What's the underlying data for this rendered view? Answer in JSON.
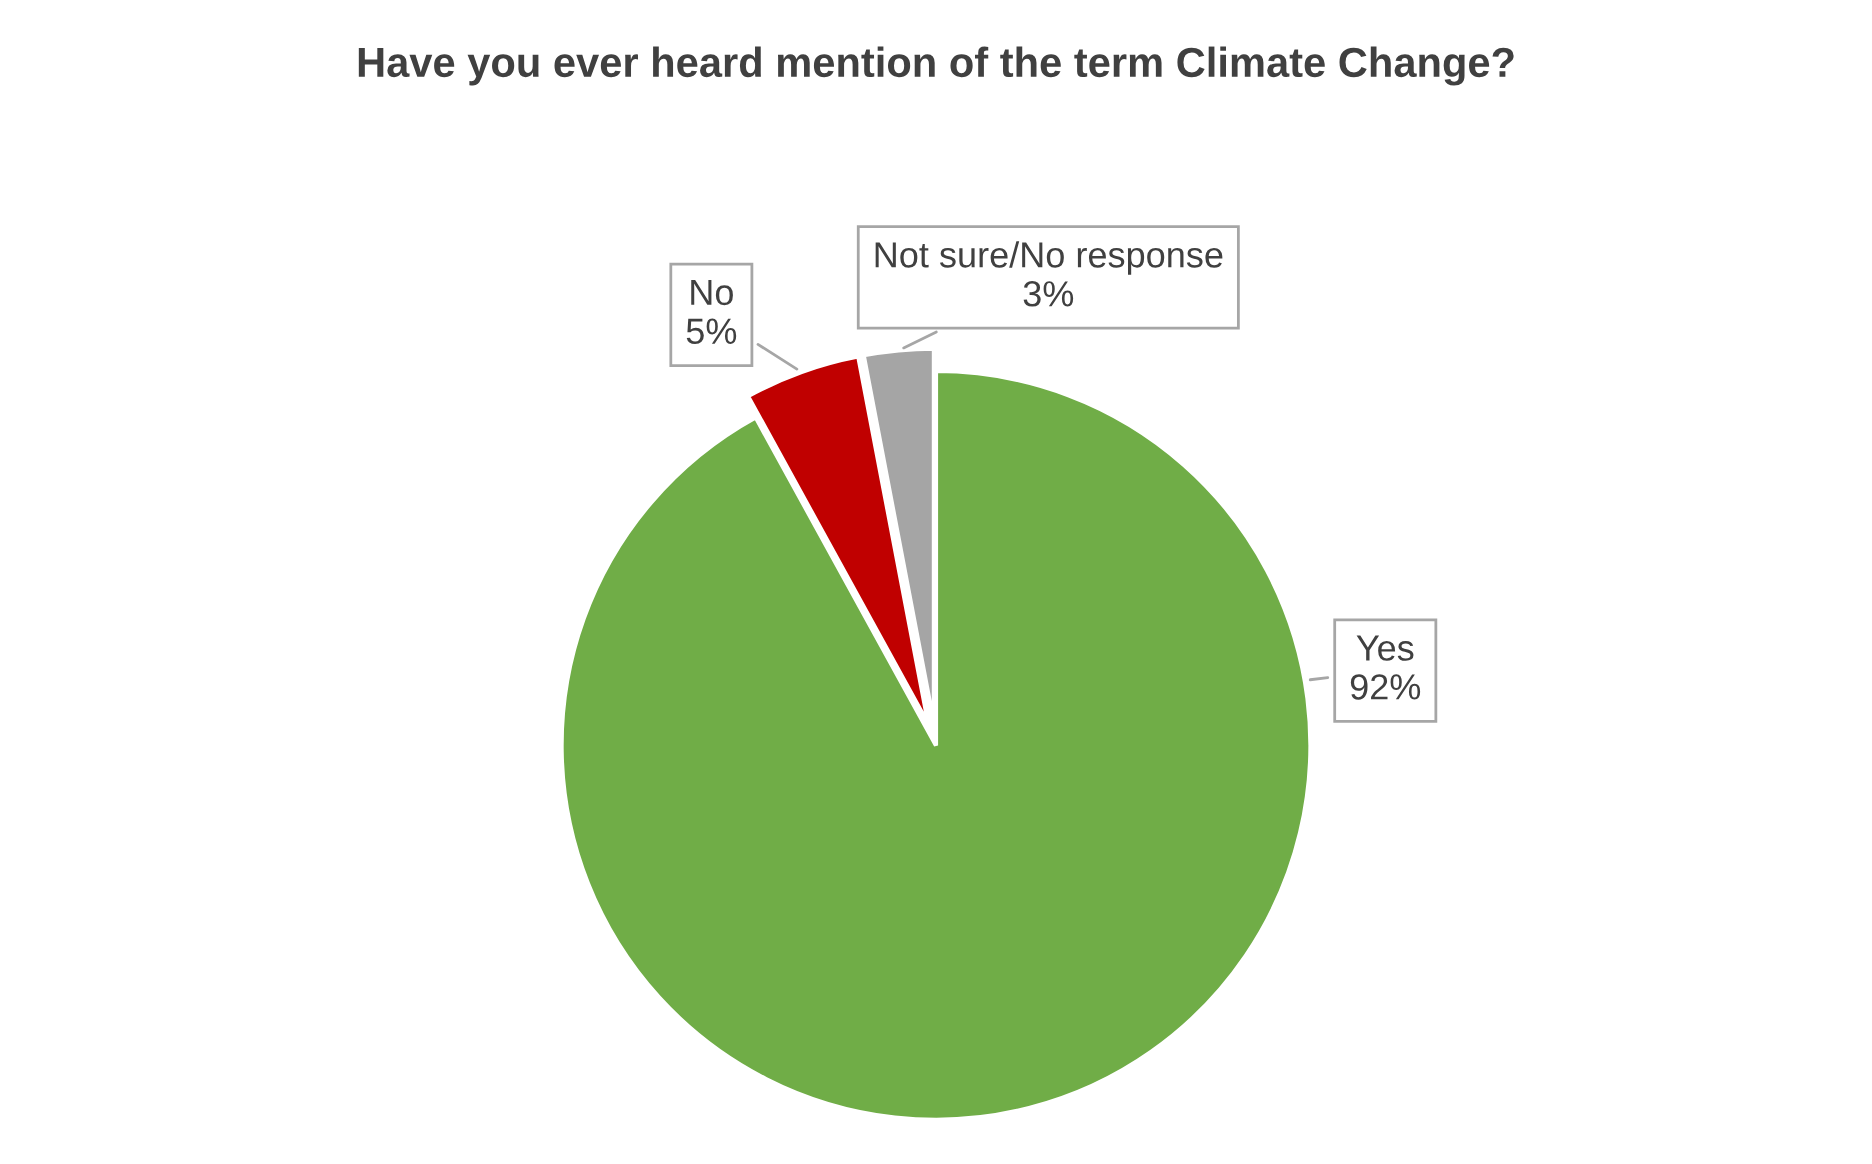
{
  "chart_data": {
    "type": "pie",
    "title": "Have you ever heard mention of the term Climate Change?",
    "categories": [
      "Yes",
      "No",
      "Not sure/No response"
    ],
    "values": [
      92,
      5,
      3
    ],
    "value_labels": [
      "92%",
      "5%",
      "3%"
    ],
    "colors": [
      "#70ad47",
      "#c00000",
      "#a5a5a5"
    ],
    "legend": false
  }
}
